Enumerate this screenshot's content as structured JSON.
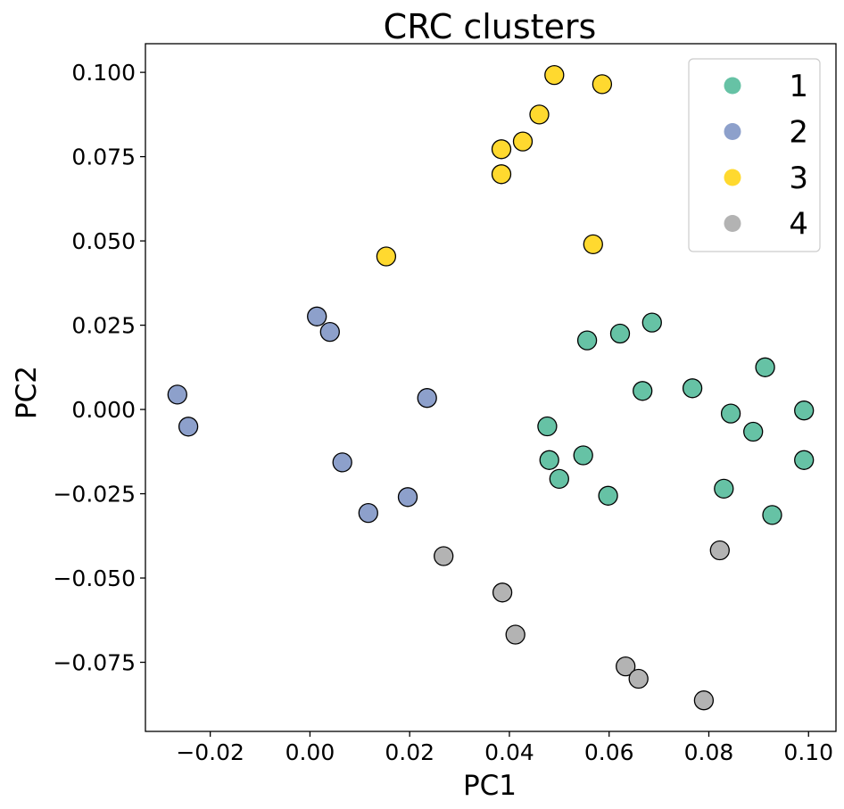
{
  "chart_data": {
    "type": "scatter",
    "title": "CRC clusters",
    "xlabel": "PC1",
    "ylabel": "PC2",
    "xlim": [
      -0.033,
      0.1055
    ],
    "ylim": [
      -0.0955,
      0.1085
    ],
    "xticks": [
      -0.02,
      0.0,
      0.02,
      0.04,
      0.06,
      0.08,
      0.1
    ],
    "xtick_labels": [
      "−0.02",
      "0.00",
      "0.02",
      "0.04",
      "0.06",
      "0.08",
      "0.10"
    ],
    "yticks": [
      -0.075,
      -0.05,
      -0.025,
      0.0,
      0.025,
      0.05,
      0.075,
      0.1
    ],
    "ytick_labels": [
      "−0.075",
      "−0.050",
      "−0.025",
      "0.000",
      "0.025",
      "0.050",
      "0.075",
      "0.100"
    ],
    "grid": false,
    "legend_position": "top-right",
    "series": [
      {
        "name": "1",
        "color": "#66c2a5",
        "points": [
          [
            0.0556,
            0.0205
          ],
          [
            0.0622,
            0.0225
          ],
          [
            0.0686,
            0.0258
          ],
          [
            0.0667,
            0.0055
          ],
          [
            0.0767,
            0.0063
          ],
          [
            0.0913,
            0.0125
          ],
          [
            0.0844,
            -0.0012
          ],
          [
            0.0991,
            -0.0003
          ],
          [
            0.0889,
            -0.0066
          ],
          [
            0.0991,
            -0.015
          ],
          [
            0.0476,
            -0.005
          ],
          [
            0.048,
            -0.015
          ],
          [
            0.0548,
            -0.0136
          ],
          [
            0.05,
            -0.0206
          ],
          [
            0.0598,
            -0.0256
          ],
          [
            0.083,
            -0.0235
          ],
          [
            0.0927,
            -0.0313
          ]
        ]
      },
      {
        "name": "2",
        "color": "#8da0cb",
        "points": [
          [
            0.0014,
            0.0276
          ],
          [
            0.004,
            0.023
          ],
          [
            0.0235,
            0.0034
          ],
          [
            -0.0266,
            0.0044
          ],
          [
            -0.0244,
            -0.0051
          ],
          [
            0.0065,
            -0.0157
          ],
          [
            0.0117,
            -0.0307
          ],
          [
            0.0196,
            -0.026
          ]
        ]
      },
      {
        "name": "3",
        "color": "#ffd92f",
        "points": [
          [
            0.049,
            0.0992
          ],
          [
            0.0586,
            0.0965
          ],
          [
            0.046,
            0.0875
          ],
          [
            0.0427,
            0.0795
          ],
          [
            0.0384,
            0.0772
          ],
          [
            0.0384,
            0.0698
          ],
          [
            0.0568,
            0.049
          ],
          [
            0.0153,
            0.0454
          ]
        ]
      },
      {
        "name": "4",
        "color": "#b3b3b3",
        "points": [
          [
            0.0268,
            -0.0435
          ],
          [
            0.0386,
            -0.0543
          ],
          [
            0.0412,
            -0.0668
          ],
          [
            0.0633,
            -0.0762
          ],
          [
            0.0659,
            -0.0799
          ],
          [
            0.079,
            -0.0863
          ],
          [
            0.0822,
            -0.0418
          ]
        ]
      }
    ]
  }
}
